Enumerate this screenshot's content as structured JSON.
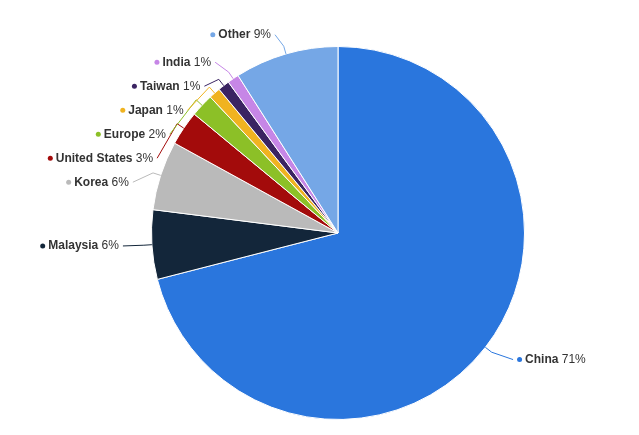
{
  "chart_data": {
    "type": "pie",
    "categories": [
      "China",
      "Malaysia",
      "Korea",
      "United States",
      "Europe",
      "Japan",
      "Taiwan",
      "India",
      "Other"
    ],
    "values": [
      71,
      6,
      6,
      3,
      2,
      1,
      1,
      1,
      9
    ],
    "value_labels": [
      "71%",
      "6%",
      "6%",
      "3%",
      "2%",
      "1%",
      "1%",
      "1%",
      "9%"
    ],
    "colors": [
      "#2a76dd",
      "#13263a",
      "#bababa",
      "#a30b0b",
      "#8cc027",
      "#f0b320",
      "#3b2462",
      "#c686e6",
      "#75a7e6"
    ],
    "data_labels": true
  }
}
